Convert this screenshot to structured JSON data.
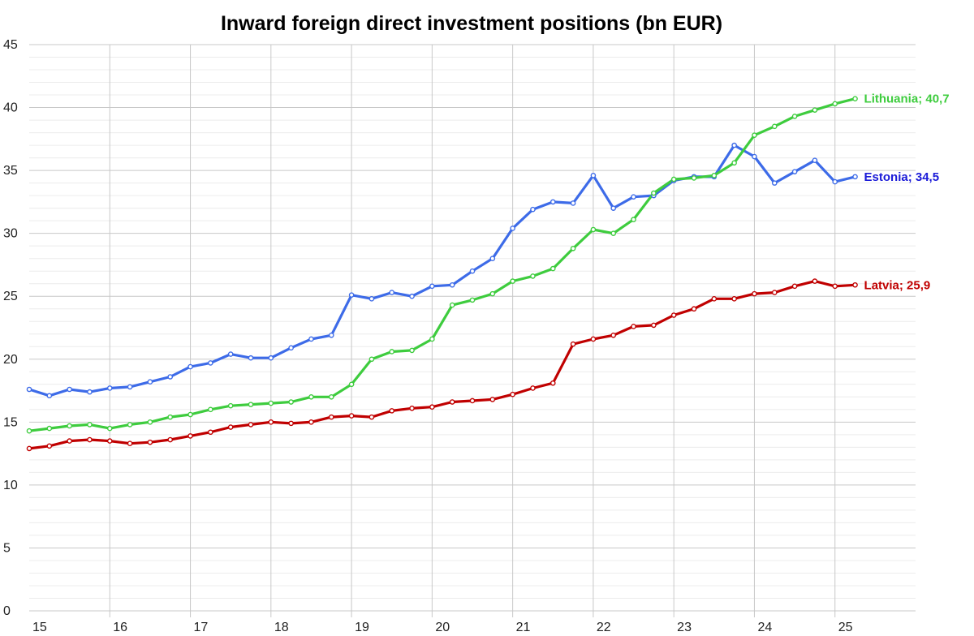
{
  "chart_data": {
    "type": "line",
    "title": "Inward foreign direct investment positions (bn EUR)",
    "xlabel": "",
    "ylabel": "",
    "ylim": [
      0,
      45
    ],
    "yticks": [
      "0",
      "5",
      "10",
      "15",
      "20",
      "25",
      "30",
      "35",
      "40",
      "45"
    ],
    "xticks": [
      "15",
      "16",
      "17",
      "18",
      "19",
      "20",
      "21",
      "22",
      "23",
      "24",
      "25"
    ],
    "xlim": [
      15.0,
      26.0
    ],
    "x": [
      15.0,
      15.25,
      15.5,
      15.75,
      16.0,
      16.25,
      16.5,
      16.75,
      17.0,
      17.25,
      17.5,
      17.75,
      18.0,
      18.25,
      18.5,
      18.75,
      19.0,
      19.25,
      19.5,
      19.75,
      20.0,
      20.25,
      20.5,
      20.75,
      21.0,
      21.25,
      21.5,
      21.75,
      22.0,
      22.25,
      22.5,
      22.75,
      23.0,
      23.25,
      23.5,
      23.75,
      24.0,
      24.25,
      24.5,
      24.75,
      25.0,
      25.25
    ],
    "grid": true,
    "series": [
      {
        "name": "Estonia",
        "color": "#3d6be8",
        "label_color": "#1a1ad8",
        "end_label": "Estonia; 34,5",
        "values": [
          17.6,
          17.1,
          17.6,
          17.4,
          17.7,
          17.8,
          18.2,
          18.6,
          19.4,
          19.7,
          20.4,
          20.1,
          20.1,
          20.9,
          21.6,
          21.9,
          25.1,
          24.8,
          25.3,
          25.0,
          25.8,
          25.9,
          27.0,
          28.0,
          30.4,
          31.9,
          32.5,
          32.4,
          34.6,
          32.0,
          32.9,
          33.0,
          34.2,
          34.5,
          34.5,
          37.0,
          36.1,
          34.0,
          34.9,
          35.8,
          34.1,
          34.5
        ]
      },
      {
        "name": "Lithuania",
        "color": "#3ecc3e",
        "label_color": "#3ecc3e",
        "end_label": "Lithuania; 40,7",
        "values": [
          14.3,
          14.5,
          14.7,
          14.8,
          14.5,
          14.8,
          15.0,
          15.4,
          15.6,
          16.0,
          16.3,
          16.4,
          16.5,
          16.6,
          17.0,
          17.0,
          18.0,
          20.0,
          20.6,
          20.7,
          21.6,
          24.3,
          24.7,
          25.2,
          26.2,
          26.6,
          27.2,
          28.8,
          30.3,
          30.0,
          31.1,
          33.2,
          34.3,
          34.4,
          34.6,
          35.6,
          37.8,
          38.5,
          39.3,
          39.8,
          40.3,
          40.7
        ]
      },
      {
        "name": "Latvia",
        "color": "#c00000",
        "label_color": "#c00000",
        "end_label": "Latvia; 25,9",
        "values": [
          12.9,
          13.1,
          13.5,
          13.6,
          13.5,
          13.3,
          13.4,
          13.6,
          13.9,
          14.2,
          14.6,
          14.8,
          15.0,
          14.9,
          15.0,
          15.4,
          15.5,
          15.4,
          15.9,
          16.1,
          16.2,
          16.6,
          16.7,
          16.8,
          17.2,
          17.7,
          18.1,
          21.2,
          21.6,
          21.9,
          22.6,
          22.7,
          23.5,
          24.0,
          24.8,
          24.8,
          25.2,
          25.3,
          25.8,
          26.2,
          25.8,
          25.9
        ]
      }
    ]
  }
}
